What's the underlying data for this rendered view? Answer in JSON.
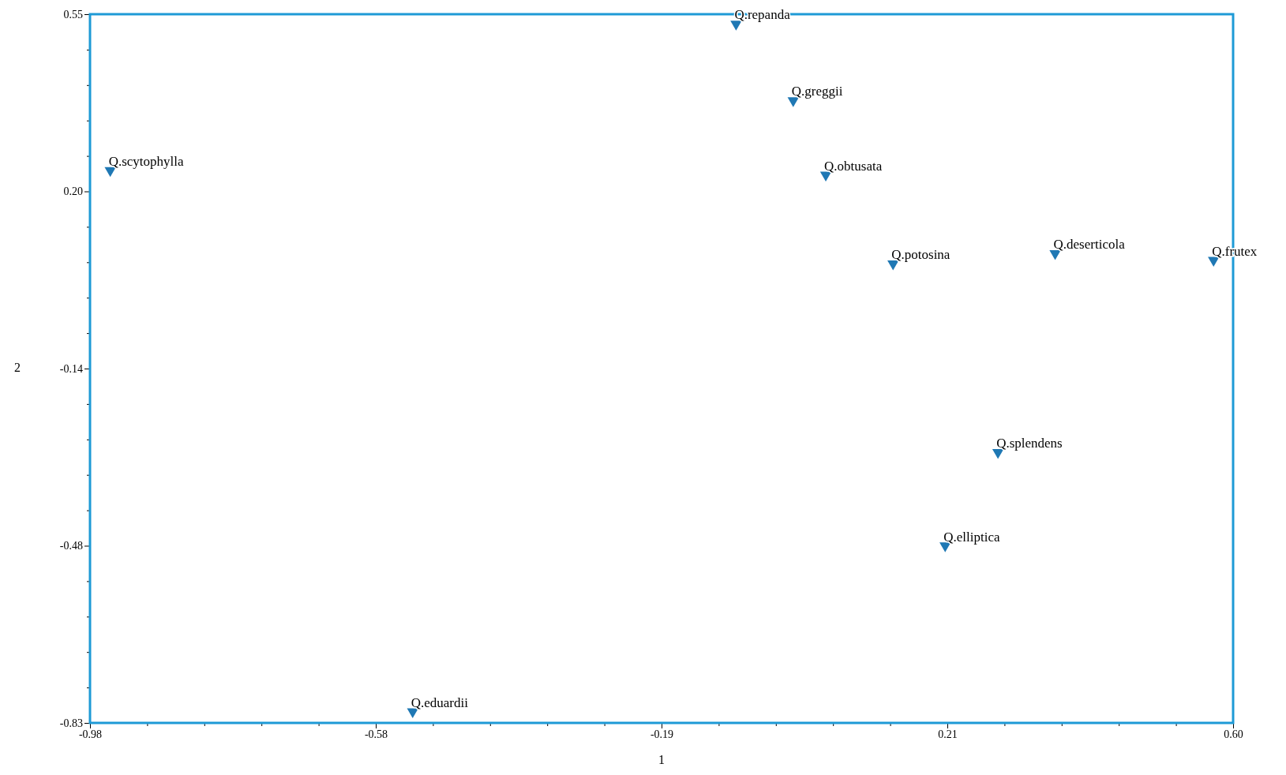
{
  "chart_data": {
    "type": "scatter",
    "xlabel": "1",
    "ylabel": "2",
    "x": [
      -0.087,
      -0.008,
      -0.952,
      0.037,
      0.13,
      0.354,
      0.573,
      0.275,
      0.202,
      -0.534
    ],
    "series": [
      {
        "color": "#1f78b4",
        "values": [
          0.531,
          0.382,
          0.246,
          0.237,
          0.064,
          0.084,
          0.071,
          -0.303,
          -0.485,
          -0.808
        ]
      }
    ],
    "marker": "triangle",
    "annotations": [
      {
        "text": "Q.repanda",
        "x": -0.087,
        "y": 0.531
      },
      {
        "text": "Q.greggii",
        "x": -0.008,
        "y": 0.382
      },
      {
        "text": "Q.scytophylla",
        "x": -0.952,
        "y": 0.246
      },
      {
        "text": "Q.obtusata",
        "x": 0.037,
        "y": 0.237
      },
      {
        "text": "Q.potosina",
        "x": 0.13,
        "y": 0.064
      },
      {
        "text": "Q.deserticola",
        "x": 0.354,
        "y": 0.084
      },
      {
        "text": "Q.frutex",
        "x": 0.573,
        "y": 0.071
      },
      {
        "text": "Q.splendens",
        "x": 0.275,
        "y": -0.303
      },
      {
        "text": "Q.elliptica",
        "x": 0.202,
        "y": -0.485
      },
      {
        "text": "Q.eduardii",
        "x": -0.534,
        "y": -0.808
      }
    ],
    "xlim": [
      -0.98,
      0.6
    ],
    "xticks": [
      {
        "value": -0.98,
        "label": "-0.98"
      },
      {
        "value": -0.901,
        "label": null
      },
      {
        "value": -0.822,
        "label": null
      },
      {
        "value": -0.743,
        "label": null
      },
      {
        "value": -0.664,
        "label": null
      },
      {
        "value": -0.585,
        "label": "-0.58"
      },
      {
        "value": -0.506,
        "label": null
      },
      {
        "value": -0.427,
        "label": null
      },
      {
        "value": -0.348,
        "label": null
      },
      {
        "value": -0.269,
        "label": null
      },
      {
        "value": -0.19,
        "label": "-0.19"
      },
      {
        "value": -0.111,
        "label": null
      },
      {
        "value": -0.032,
        "label": null
      },
      {
        "value": 0.047,
        "label": null
      },
      {
        "value": 0.126,
        "label": null
      },
      {
        "value": 0.205,
        "label": "0.21"
      },
      {
        "value": 0.284,
        "label": null
      },
      {
        "value": 0.363,
        "label": null
      },
      {
        "value": 0.442,
        "label": null
      },
      {
        "value": 0.521,
        "label": null
      },
      {
        "value": 0.6,
        "label": "0.60"
      }
    ],
    "ylim": [
      -0.83,
      0.55
    ],
    "yticks": [
      {
        "value": 0.55,
        "label": "0.55"
      },
      {
        "value": 0.481,
        "label": null
      },
      {
        "value": 0.412,
        "label": null
      },
      {
        "value": 0.343,
        "label": null
      },
      {
        "value": 0.274,
        "label": null
      },
      {
        "value": 0.205,
        "label": "0.20"
      },
      {
        "value": 0.136,
        "label": null
      },
      {
        "value": 0.067,
        "label": null
      },
      {
        "value": -0.002,
        "label": null
      },
      {
        "value": -0.071,
        "label": null
      },
      {
        "value": -0.14,
        "label": "-0.14"
      },
      {
        "value": -0.209,
        "label": null
      },
      {
        "value": -0.278,
        "label": null
      },
      {
        "value": -0.347,
        "label": null
      },
      {
        "value": -0.416,
        "label": null
      },
      {
        "value": -0.485,
        "label": "-0.48"
      },
      {
        "value": -0.554,
        "label": null
      },
      {
        "value": -0.623,
        "label": null
      },
      {
        "value": -0.692,
        "label": null
      },
      {
        "value": -0.761,
        "label": null
      },
      {
        "value": -0.83,
        "label": "-0.83"
      }
    ],
    "grid": false
  }
}
